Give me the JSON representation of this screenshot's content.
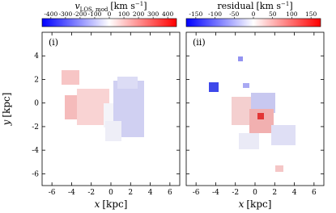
{
  "panels": [
    {
      "label": "(i)",
      "colorbar": {
        "symbol": "v",
        "subscript": "LOS, mod",
        "unit": "[km s",
        "unit_exponent": "−1",
        "unit_close": "]",
        "lim": [
          -460,
          460
        ],
        "ticks": [
          -400,
          -300,
          -200,
          -100,
          0,
          100,
          200,
          300,
          400
        ]
      }
    },
    {
      "label": "(ii)",
      "colorbar": {
        "symbol": "residual",
        "unit": "[km s",
        "unit_exponent": "−1",
        "unit_close": "]",
        "lim": [
          -175,
          175
        ],
        "ticks": [
          -150,
          -100,
          -50,
          0,
          50,
          100,
          150
        ]
      }
    }
  ],
  "x_axis": {
    "symbol": "x",
    "unit": "[kpc]",
    "lim": [
      -7,
      7
    ],
    "ticks": [
      -6,
      -4,
      -2,
      0,
      2,
      4,
      6
    ]
  },
  "y_axis": {
    "symbol": "y",
    "unit": "[kpc]",
    "lim": [
      -7,
      6
    ],
    "ticks": [
      -6,
      -4,
      -2,
      0,
      2,
      4
    ]
  }
}
